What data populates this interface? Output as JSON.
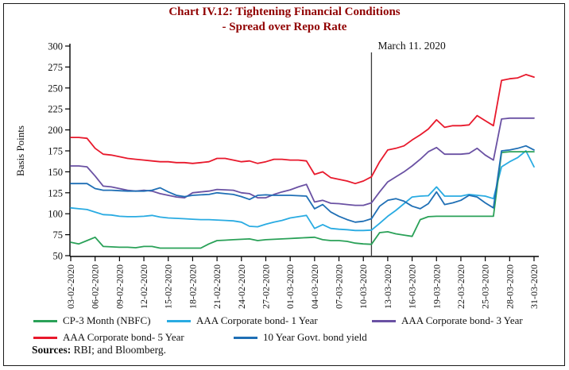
{
  "chart_data": {
    "type": "line",
    "title": "Chart IV.12: Tightening Financial Conditions",
    "subtitle": "- Spread over Repo Rate",
    "ylabel": "Basis Points",
    "ylim": [
      50,
      300
    ],
    "yticks": [
      300,
      275,
      250,
      225,
      200,
      175,
      150,
      125,
      100,
      75,
      50
    ],
    "grid": false,
    "legend_position": "bottom",
    "x_days_total": 58,
    "x_tick_labels": [
      "03-02-2020",
      "06-02-2020",
      "09-02-2020",
      "12-02-2020",
      "15-02-2020",
      "18-02-2020",
      "21-02-2020",
      "24-02-2020",
      "27-02-2020",
      "01-03-2020",
      "04-03-2020",
      "07-03-2020",
      "10-03-2020",
      "13-03-2020",
      "16-03-2020",
      "19-03-2020",
      "22-03-2020",
      "25-03-2020",
      "28-03-2020",
      "31-03-2020"
    ],
    "annotation": {
      "label": "March 11. 2020",
      "day_index": 37
    },
    "series": [
      {
        "name": "CP-3 Month (NBFC)",
        "color": "#2aa158",
        "values": [
          66,
          64,
          68,
          72,
          61,
          60.5,
          60,
          60,
          59.5,
          61,
          61,
          59,
          59,
          59,
          59,
          59,
          59,
          64,
          68,
          68.5,
          69,
          69.5,
          70,
          68,
          69,
          69.5,
          70,
          70.5,
          71,
          71.5,
          72,
          69,
          68,
          68,
          67,
          65,
          64,
          63.5,
          77.5,
          78.5,
          76,
          74.5,
          73,
          93,
          96.5,
          97,
          97,
          97,
          97,
          97,
          97,
          97,
          97,
          173,
          174,
          174,
          174,
          174
        ]
      },
      {
        "name": "AAA Corporate bond- 1 Year",
        "color": "#29abe2",
        "values": [
          107,
          106,
          105,
          102,
          99,
          98.5,
          97,
          96.5,
          96.5,
          97,
          98,
          96,
          95,
          94.5,
          94,
          93.5,
          93,
          93,
          92.5,
          92,
          91.5,
          90,
          85,
          84.5,
          87.5,
          90,
          92,
          95,
          96.5,
          98,
          82.5,
          87,
          82.5,
          81.5,
          81,
          80,
          80,
          80.5,
          88.5,
          97,
          104,
          112,
          120,
          121,
          121.5,
          132,
          121,
          121,
          121,
          123,
          122,
          121,
          118,
          156,
          162,
          167,
          175,
          156
        ]
      },
      {
        "name": "AAA Corporate bond- 3 Year",
        "color": "#6a51a3",
        "values": [
          157,
          157,
          156,
          145,
          133,
          132,
          130,
          128,
          127,
          128,
          127,
          124,
          122,
          120,
          119,
          125,
          126,
          127,
          129,
          128.5,
          128,
          125,
          124,
          119,
          119,
          123,
          126,
          128.5,
          132,
          135,
          114,
          116,
          112.5,
          112,
          111,
          110,
          110,
          113,
          126,
          138,
          144,
          150,
          157,
          165,
          174,
          179,
          171,
          171,
          171,
          172,
          178,
          170,
          164,
          213,
          214,
          214,
          214,
          214
        ]
      },
      {
        "name": "AAA Corporate bond- 5 Year",
        "color": "#e8192c",
        "values": [
          191,
          191,
          190,
          178,
          171,
          170,
          168,
          166,
          165,
          164,
          163,
          162,
          162,
          161,
          161,
          160,
          161,
          162,
          166,
          166,
          164,
          162,
          163,
          160,
          162,
          165,
          165,
          164,
          164,
          163,
          147,
          150,
          143,
          141,
          139,
          136,
          139,
          144,
          162,
          176,
          178,
          181,
          188,
          194,
          201,
          212,
          203,
          205,
          205,
          206,
          217,
          211,
          205,
          259,
          261,
          262,
          266,
          263
        ]
      },
      {
        "name": "10 Year Govt. bond yield",
        "color": "#1f6fb5",
        "values": [
          136,
          136,
          136,
          130,
          128,
          128,
          127.5,
          127,
          127,
          127,
          128,
          131,
          126,
          122,
          120.5,
          122,
          122.5,
          123,
          125,
          124,
          123,
          120.5,
          117,
          122,
          122.5,
          122,
          122,
          122,
          121.5,
          121,
          106,
          111,
          102,
          97,
          93,
          90,
          91,
          94,
          109,
          116,
          118,
          115,
          109,
          106,
          112,
          126,
          111,
          113,
          116,
          122,
          120,
          113,
          107,
          175,
          176,
          178,
          181,
          176
        ]
      }
    ],
    "legend_rows": [
      [
        0,
        1,
        2
      ],
      [
        3,
        4
      ]
    ],
    "draw_order": [
      1,
      0,
      2,
      4,
      3
    ],
    "sources_label": "Sources:",
    "sources_text": " RBI; and Bloomberg."
  }
}
